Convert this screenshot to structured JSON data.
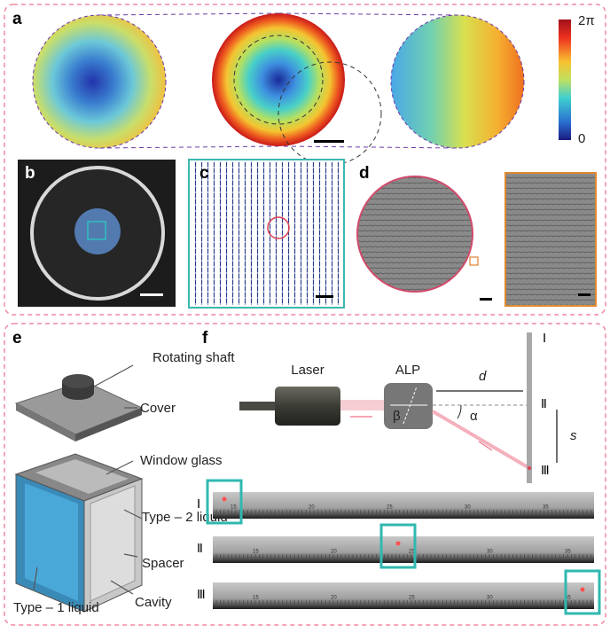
{
  "panels": {
    "a": {
      "label": "a",
      "colorbar": {
        "max": "2π",
        "min": "0"
      }
    },
    "b": {
      "label": "b"
    },
    "c": {
      "label": "c"
    },
    "d": {
      "label": "d"
    },
    "e": {
      "label": "e",
      "parts": [
        "Rotating shaft",
        "Cover",
        "Window glass",
        "Type – 2 liquid",
        "Spacer",
        "Cavity",
        "Type – 1 liquid"
      ]
    },
    "f": {
      "label": "f",
      "laser": "Laser",
      "alp": "ALP",
      "distance": "d",
      "shift": "s",
      "beta": "β",
      "alpha": "α",
      "positions": [
        "Ⅰ",
        "Ⅱ",
        "Ⅲ"
      ],
      "ruler_ticks": [
        "15",
        "20",
        "25",
        "30",
        "35"
      ]
    }
  }
}
